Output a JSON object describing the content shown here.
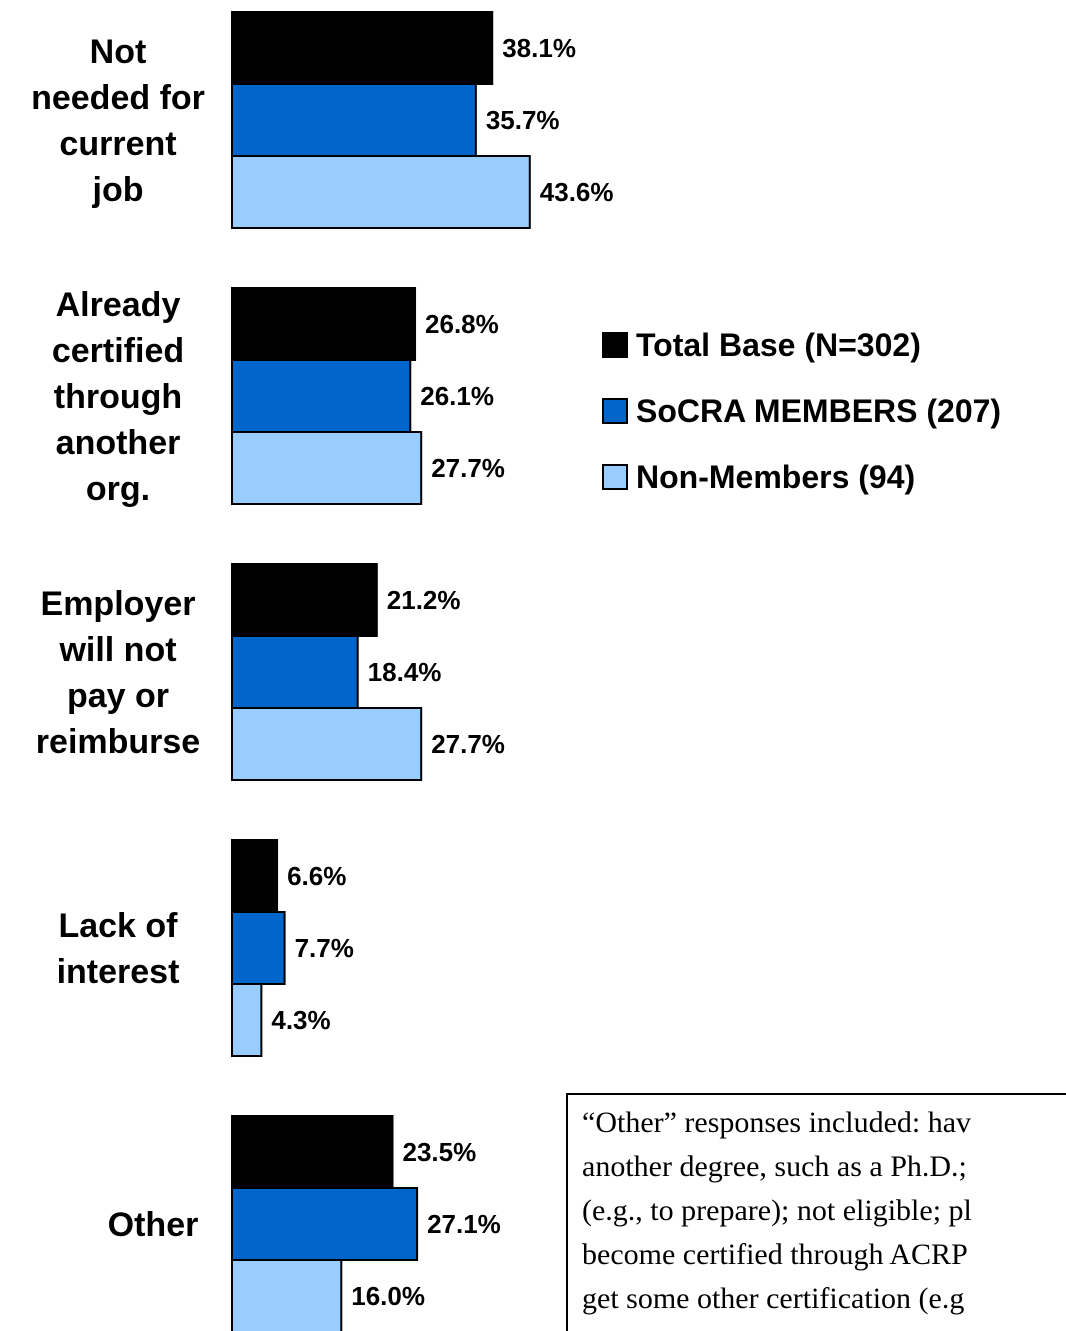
{
  "chart_data": {
    "type": "bar",
    "orientation": "horizontal",
    "categories": [
      [
        "Not",
        "needed for",
        "current",
        "job"
      ],
      [
        "Already",
        "certified",
        "through",
        "another",
        "org."
      ],
      [
        "Employer",
        "will not",
        "pay or",
        "reimburse"
      ],
      [
        "Lack of",
        "interest"
      ],
      [
        "Other"
      ]
    ],
    "series": [
      {
        "name": "Total Base (N=302)",
        "color": "#000000",
        "values": [
          38.1,
          26.8,
          21.2,
          6.6,
          23.5
        ],
        "labels": [
          "38.1%",
          "26.8%",
          "21.2%",
          "6.6%",
          "23.5%"
        ]
      },
      {
        "name": "SoCRA MEMBERS (207)",
        "color": "#0066CC",
        "values": [
          35.7,
          26.1,
          18.4,
          7.7,
          27.1
        ],
        "labels": [
          "35.7%",
          "26.1%",
          "18.4%",
          "7.7%",
          "27.1%"
        ]
      },
      {
        "name": "Non-Members (94)",
        "color": "#99CCFF",
        "values": [
          43.6,
          27.7,
          27.7,
          4.3,
          16.0
        ],
        "labels": [
          "43.6%",
          "27.7%",
          "27.7%",
          "4.3%",
          "16.0%"
        ]
      }
    ],
    "legend_position": "right",
    "grid": false
  },
  "note": {
    "lines": [
      "“Other” responses included: hav",
      "another degree, such as a Ph.D.;",
      "(e.g., to prepare); not eligible; pl",
      "become certified through ACRP",
      "get some other certification (e.g"
    ]
  }
}
